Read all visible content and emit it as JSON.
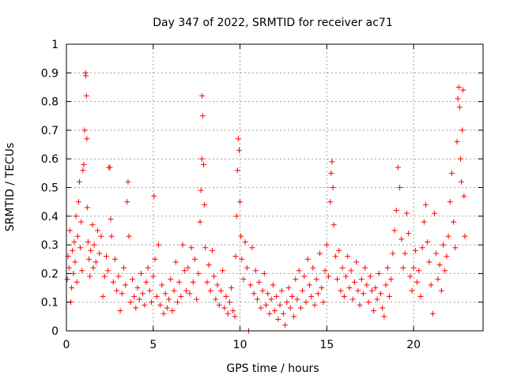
{
  "chart_data": {
    "type": "scatter",
    "title": "Day 347 of 2022, SRMTID for receiver ac71",
    "xlabel": "GPS time / hours",
    "ylabel": "SRMTID / TECUs",
    "xlim": [
      0,
      24
    ],
    "ylim": [
      0,
      1
    ],
    "xticks": [
      0,
      5,
      10,
      15,
      20
    ],
    "xtick_labels": [
      "0",
      "5",
      "10",
      "15",
      "20"
    ],
    "yticks": [
      0,
      0.1,
      0.2,
      0.3,
      0.4,
      0.5,
      0.6,
      0.7,
      0.8,
      0.9,
      1
    ],
    "ytick_labels": [
      "0",
      "0.1",
      "0.2",
      "0.3",
      "0.4",
      "0.5",
      "0.6",
      "0.7",
      "0.8",
      "0.9",
      "1"
    ],
    "grid": true,
    "marker": "+",
    "color": "#ff0000",
    "series": [
      {
        "name": "SRMTID",
        "points": [
          [
            0.05,
            0.18
          ],
          [
            0.1,
            0.26
          ],
          [
            0.15,
            0.22
          ],
          [
            0.2,
            0.35
          ],
          [
            0.25,
            0.1
          ],
          [
            0.3,
            0.15
          ],
          [
            0.35,
            0.28
          ],
          [
            0.4,
            0.2
          ],
          [
            0.45,
            0.31
          ],
          [
            0.5,
            0.24
          ],
          [
            0.55,
            0.4
          ],
          [
            0.6,
            0.17
          ],
          [
            0.65,
            0.33
          ],
          [
            0.7,
            0.45
          ],
          [
            0.75,
            0.52
          ],
          [
            0.8,
            0.29
          ],
          [
            0.85,
            0.38
          ],
          [
            0.9,
            0.21
          ],
          [
            0.95,
            0.56
          ],
          [
            1.0,
            0.58
          ],
          [
            1.05,
            0.7
          ],
          [
            1.1,
            0.9
          ],
          [
            1.12,
            0.89
          ],
          [
            1.15,
            0.82
          ],
          [
            1.18,
            0.67
          ],
          [
            1.2,
            0.43
          ],
          [
            1.25,
            0.31
          ],
          [
            1.3,
            0.25
          ],
          [
            1.35,
            0.19
          ],
          [
            1.4,
            0.28
          ],
          [
            1.5,
            0.37
          ],
          [
            1.55,
            0.22
          ],
          [
            1.6,
            0.3
          ],
          [
            1.7,
            0.24
          ],
          [
            1.8,
            0.35
          ],
          [
            1.9,
            0.27
          ],
          [
            2.0,
            0.33
          ],
          [
            2.1,
            0.12
          ],
          [
            2.2,
            0.19
          ],
          [
            2.3,
            0.26
          ],
          [
            2.4,
            0.21
          ],
          [
            2.45,
            0.57
          ],
          [
            2.5,
            0.57
          ],
          [
            2.55,
            0.39
          ],
          [
            2.6,
            0.33
          ],
          [
            2.7,
            0.17
          ],
          [
            2.8,
            0.25
          ],
          [
            2.9,
            0.14
          ],
          [
            3.0,
            0.19
          ],
          [
            3.1,
            0.07
          ],
          [
            3.2,
            0.13
          ],
          [
            3.3,
            0.22
          ],
          [
            3.4,
            0.16
          ],
          [
            3.5,
            0.45
          ],
          [
            3.55,
            0.52
          ],
          [
            3.6,
            0.33
          ],
          [
            3.7,
            0.1
          ],
          [
            3.8,
            0.18
          ],
          [
            3.9,
            0.12
          ],
          [
            4.0,
            0.08
          ],
          [
            4.1,
            0.15
          ],
          [
            4.2,
            0.11
          ],
          [
            4.3,
            0.2
          ],
          [
            4.4,
            0.13
          ],
          [
            4.5,
            0.09
          ],
          [
            4.6,
            0.17
          ],
          [
            4.7,
            0.22
          ],
          [
            4.8,
            0.14
          ],
          [
            4.9,
            0.1
          ],
          [
            5.0,
            0.19
          ],
          [
            5.05,
            0.47
          ],
          [
            5.1,
            0.25
          ],
          [
            5.2,
            0.12
          ],
          [
            5.3,
            0.3
          ],
          [
            5.4,
            0.09
          ],
          [
            5.5,
            0.16
          ],
          [
            5.6,
            0.06
          ],
          [
            5.7,
            0.13
          ],
          [
            5.8,
            0.08
          ],
          [
            5.9,
            0.11
          ],
          [
            6.0,
            0.18
          ],
          [
            6.1,
            0.07
          ],
          [
            6.2,
            0.14
          ],
          [
            6.3,
            0.24
          ],
          [
            6.4,
            0.1
          ],
          [
            6.5,
            0.17
          ],
          [
            6.6,
            0.12
          ],
          [
            6.7,
            0.3
          ],
          [
            6.8,
            0.21
          ],
          [
            6.9,
            0.14
          ],
          [
            7.0,
            0.22
          ],
          [
            7.1,
            0.13
          ],
          [
            7.2,
            0.29
          ],
          [
            7.3,
            0.17
          ],
          [
            7.4,
            0.25
          ],
          [
            7.5,
            0.11
          ],
          [
            7.6,
            0.2
          ],
          [
            7.7,
            0.38
          ],
          [
            7.75,
            0.49
          ],
          [
            7.8,
            0.6
          ],
          [
            7.82,
            0.82
          ],
          [
            7.85,
            0.75
          ],
          [
            7.9,
            0.58
          ],
          [
            7.95,
            0.44
          ],
          [
            8.0,
            0.29
          ],
          [
            8.1,
            0.17
          ],
          [
            8.2,
            0.23
          ],
          [
            8.3,
            0.14
          ],
          [
            8.4,
            0.28
          ],
          [
            8.5,
            0.19
          ],
          [
            8.6,
            0.11
          ],
          [
            8.7,
            0.16
          ],
          [
            8.8,
            0.09
          ],
          [
            8.9,
            0.14
          ],
          [
            9.0,
            0.21
          ],
          [
            9.1,
            0.08
          ],
          [
            9.2,
            0.12
          ],
          [
            9.3,
            0.06
          ],
          [
            9.4,
            0.1
          ],
          [
            9.5,
            0.15
          ],
          [
            9.6,
            0.07
          ],
          [
            9.7,
            0.05
          ],
          [
            9.75,
            0.26
          ],
          [
            9.8,
            0.4
          ],
          [
            9.85,
            0.56
          ],
          [
            9.9,
            0.67
          ],
          [
            9.95,
            0.63
          ],
          [
            10.0,
            0.45
          ],
          [
            10.05,
            0.33
          ],
          [
            10.1,
            0.25
          ],
          [
            10.2,
            0.18
          ],
          [
            10.3,
            0.31
          ],
          [
            10.4,
            0.22
          ],
          [
            10.5,
            0.0
          ],
          [
            10.6,
            0.16
          ],
          [
            10.7,
            0.29
          ],
          [
            10.8,
            0.13
          ],
          [
            10.9,
            0.21
          ],
          [
            11.0,
            0.11
          ],
          [
            11.1,
            0.17
          ],
          [
            11.2,
            0.08
          ],
          [
            11.3,
            0.14
          ],
          [
            11.4,
            0.2
          ],
          [
            11.5,
            0.09
          ],
          [
            11.6,
            0.13
          ],
          [
            11.7,
            0.06
          ],
          [
            11.8,
            0.11
          ],
          [
            11.9,
            0.16
          ],
          [
            12.0,
            0.07
          ],
          [
            12.1,
            0.12
          ],
          [
            12.2,
            0.04
          ],
          [
            12.3,
            0.09
          ],
          [
            12.4,
            0.14
          ],
          [
            12.5,
            0.06
          ],
          [
            12.6,
            0.02
          ],
          [
            12.7,
            0.1
          ],
          [
            12.8,
            0.15
          ],
          [
            12.9,
            0.08
          ],
          [
            13.0,
            0.12
          ],
          [
            13.1,
            0.05
          ],
          [
            13.2,
            0.18
          ],
          [
            13.3,
            0.11
          ],
          [
            13.4,
            0.21
          ],
          [
            13.5,
            0.08
          ],
          [
            13.6,
            0.14
          ],
          [
            13.7,
            0.19
          ],
          [
            13.8,
            0.1
          ],
          [
            13.9,
            0.25
          ],
          [
            14.0,
            0.16
          ],
          [
            14.1,
            0.12
          ],
          [
            14.2,
            0.22
          ],
          [
            14.3,
            0.09
          ],
          [
            14.4,
            0.18
          ],
          [
            14.5,
            0.13
          ],
          [
            14.6,
            0.27
          ],
          [
            14.7,
            0.15
          ],
          [
            14.8,
            0.1
          ],
          [
            14.9,
            0.21
          ],
          [
            15.0,
            0.3
          ],
          [
            15.1,
            0.19
          ],
          [
            15.2,
            0.45
          ],
          [
            15.25,
            0.55
          ],
          [
            15.3,
            0.59
          ],
          [
            15.35,
            0.5
          ],
          [
            15.4,
            0.37
          ],
          [
            15.5,
            0.26
          ],
          [
            15.6,
            0.18
          ],
          [
            15.7,
            0.28
          ],
          [
            15.8,
            0.14
          ],
          [
            15.9,
            0.22
          ],
          [
            16.0,
            0.12
          ],
          [
            16.1,
            0.19
          ],
          [
            16.2,
            0.26
          ],
          [
            16.3,
            0.15
          ],
          [
            16.4,
            0.21
          ],
          [
            16.5,
            0.11
          ],
          [
            16.6,
            0.17
          ],
          [
            16.7,
            0.24
          ],
          [
            16.8,
            0.14
          ],
          [
            16.9,
            0.09
          ],
          [
            17.0,
            0.18
          ],
          [
            17.1,
            0.13
          ],
          [
            17.2,
            0.22
          ],
          [
            17.3,
            0.16
          ],
          [
            17.4,
            0.1
          ],
          [
            17.5,
            0.19
          ],
          [
            17.6,
            0.14
          ],
          [
            17.7,
            0.07
          ],
          [
            17.8,
            0.15
          ],
          [
            17.9,
            0.11
          ],
          [
            18.0,
            0.2
          ],
          [
            18.1,
            0.13
          ],
          [
            18.2,
            0.08
          ],
          [
            18.3,
            0.05
          ],
          [
            18.4,
            0.16
          ],
          [
            18.5,
            0.22
          ],
          [
            18.6,
            0.12
          ],
          [
            18.7,
            0.18
          ],
          [
            18.8,
            0.27
          ],
          [
            18.9,
            0.35
          ],
          [
            19.0,
            0.42
          ],
          [
            19.1,
            0.57
          ],
          [
            19.2,
            0.5
          ],
          [
            19.3,
            0.32
          ],
          [
            19.4,
            0.22
          ],
          [
            19.5,
            0.27
          ],
          [
            19.6,
            0.41
          ],
          [
            19.7,
            0.34
          ],
          [
            19.8,
            0.19
          ],
          [
            19.9,
            0.14
          ],
          [
            20.0,
            0.22
          ],
          [
            20.1,
            0.28
          ],
          [
            20.2,
            0.17
          ],
          [
            20.3,
            0.21
          ],
          [
            20.4,
            0.12
          ],
          [
            20.5,
            0.29
          ],
          [
            20.6,
            0.38
          ],
          [
            20.7,
            0.44
          ],
          [
            20.8,
            0.31
          ],
          [
            20.9,
            0.24
          ],
          [
            21.0,
            0.16
          ],
          [
            21.1,
            0.06
          ],
          [
            21.2,
            0.41
          ],
          [
            21.3,
            0.27
          ],
          [
            21.4,
            0.18
          ],
          [
            21.5,
            0.23
          ],
          [
            21.6,
            0.14
          ],
          [
            21.7,
            0.3
          ],
          [
            21.8,
            0.21
          ],
          [
            21.9,
            0.26
          ],
          [
            22.0,
            0.33
          ],
          [
            22.1,
            0.45
          ],
          [
            22.2,
            0.55
          ],
          [
            22.3,
            0.38
          ],
          [
            22.4,
            0.29
          ],
          [
            22.5,
            0.66
          ],
          [
            22.55,
            0.81
          ],
          [
            22.6,
            0.85
          ],
          [
            22.65,
            0.78
          ],
          [
            22.7,
            0.6
          ],
          [
            22.75,
            0.52
          ],
          [
            22.8,
            0.7
          ],
          [
            22.85,
            0.84
          ],
          [
            22.9,
            0.47
          ],
          [
            22.95,
            0.33
          ]
        ]
      }
    ]
  }
}
